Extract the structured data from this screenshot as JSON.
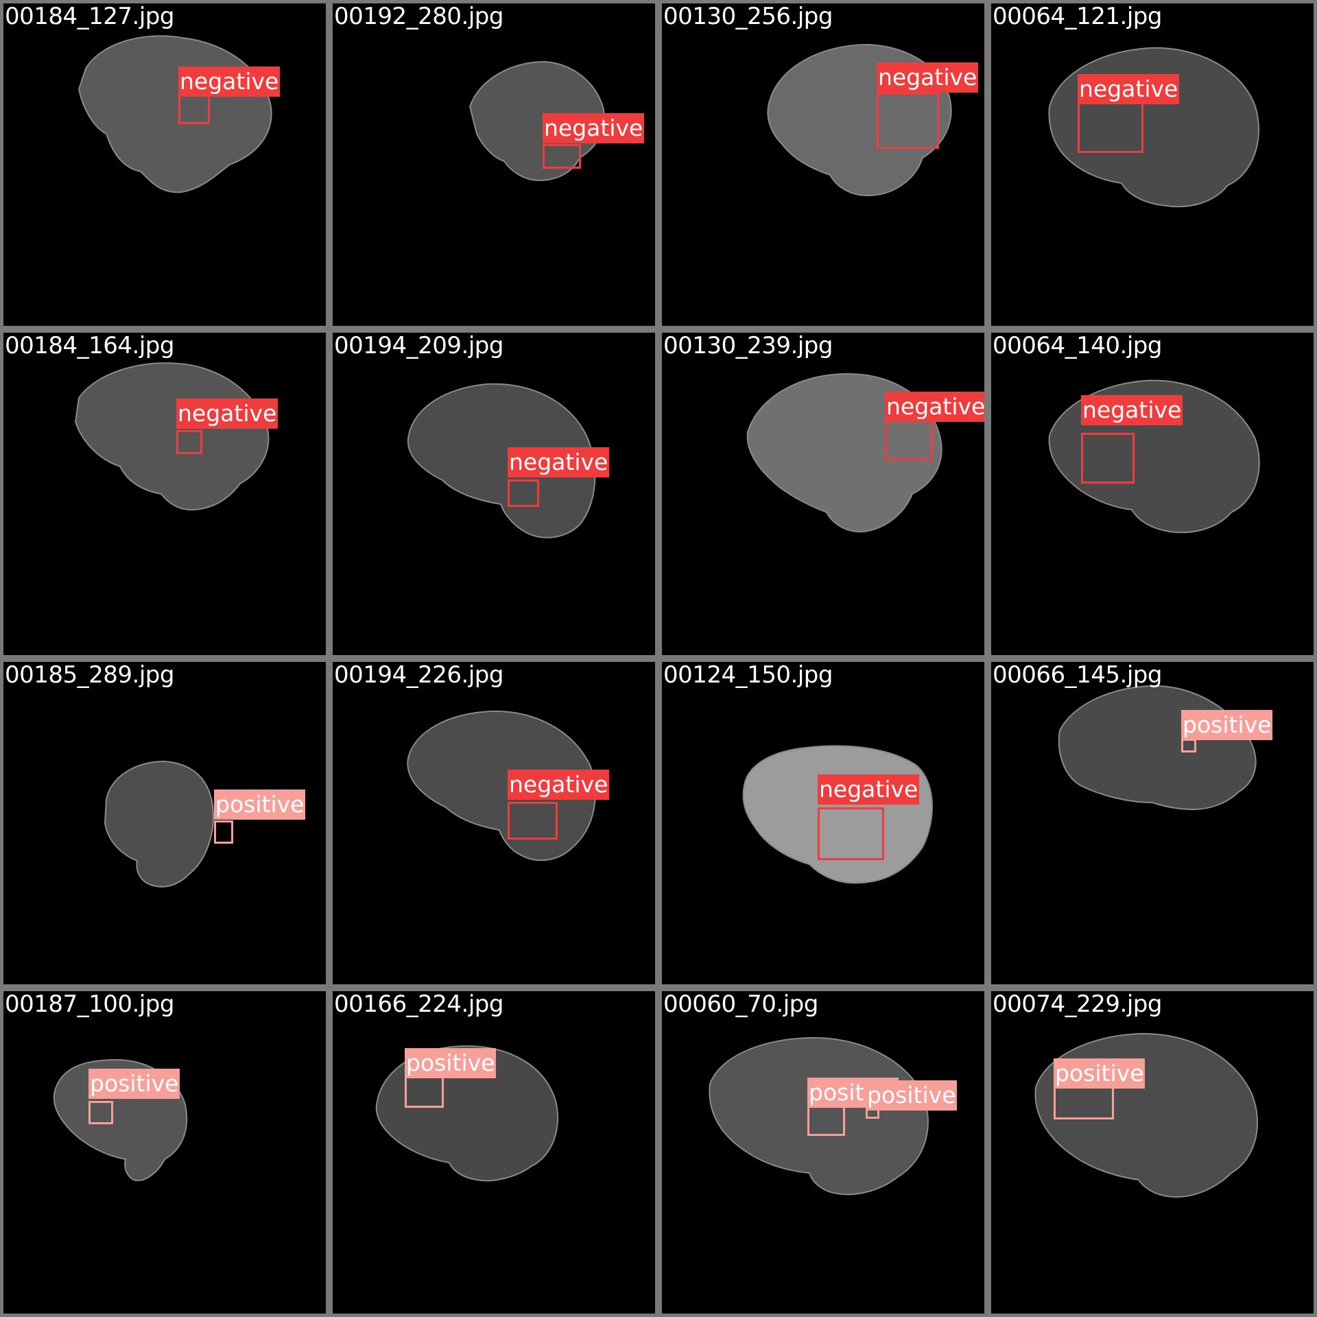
{
  "colors": {
    "negative": "#f03c3c",
    "positive": "#f7a09a",
    "tile_border": "#7a7a7a"
  },
  "tiles": [
    {
      "filename": "00184_127.jpg",
      "detections": [
        {
          "label": "negative"
        }
      ]
    },
    {
      "filename": "00192_280.jpg",
      "detections": [
        {
          "label": "negative"
        }
      ]
    },
    {
      "filename": "00130_256.jpg",
      "detections": [
        {
          "label": "negative"
        }
      ]
    },
    {
      "filename": "00064_121.jpg",
      "detections": [
        {
          "label": "negative"
        }
      ]
    },
    {
      "filename": "00184_164.jpg",
      "detections": [
        {
          "label": "negative"
        }
      ]
    },
    {
      "filename": "00194_209.jpg",
      "detections": [
        {
          "label": "negative"
        }
      ]
    },
    {
      "filename": "00130_239.jpg",
      "detections": [
        {
          "label": "negative"
        }
      ]
    },
    {
      "filename": "00064_140.jpg",
      "detections": [
        {
          "label": "negative"
        }
      ]
    },
    {
      "filename": "00185_289.jpg",
      "detections": [
        {
          "label": "positive"
        }
      ]
    },
    {
      "filename": "00194_226.jpg",
      "detections": [
        {
          "label": "negative"
        }
      ]
    },
    {
      "filename": "00124_150.jpg",
      "detections": [
        {
          "label": "negative"
        }
      ]
    },
    {
      "filename": "00066_145.jpg",
      "detections": [
        {
          "label": "positive"
        }
      ]
    },
    {
      "filename": "00187_100.jpg",
      "detections": [
        {
          "label": "positive"
        }
      ]
    },
    {
      "filename": "00166_224.jpg",
      "detections": [
        {
          "label": "positive"
        }
      ]
    },
    {
      "filename": "00060_70.jpg",
      "detections": [
        {
          "label": "positive"
        },
        {
          "label": "positive"
        }
      ]
    },
    {
      "filename": "00074_229.jpg",
      "detections": [
        {
          "label": "positive"
        }
      ]
    }
  ]
}
